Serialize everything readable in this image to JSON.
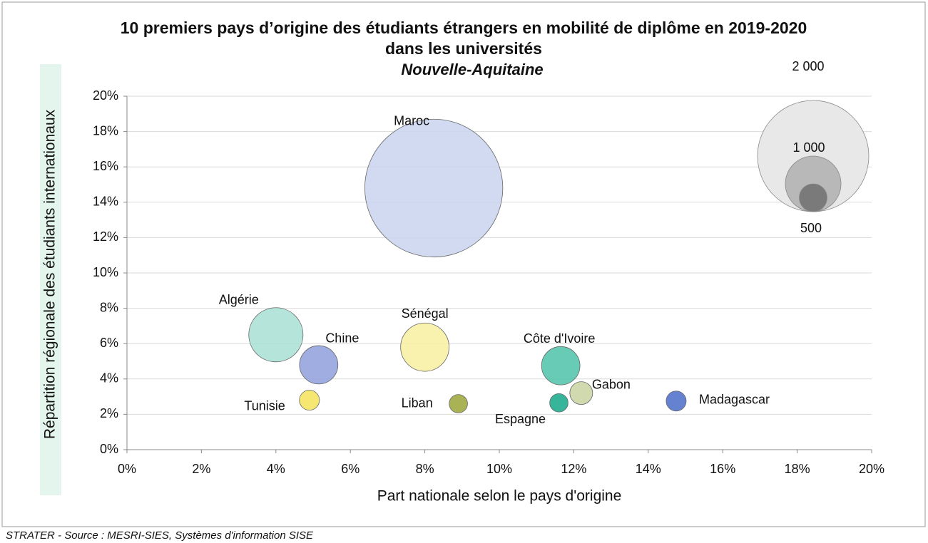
{
  "chart_data": {
    "type": "bubble",
    "title": "10 premiers pays d’origine des étudiants étrangers en mobilité de diplôme en 2019-2020",
    "title_line2": "dans les universités",
    "subtitle": "Nouvelle-Aquitaine",
    "x_label": "Part nationale selon le pays d'origine",
    "y_label": "Répartition régionale des étudiants internationaux",
    "source": "STRATER - Source : MESRI-SIES, Systèmes d'information SISE",
    "labels": [
      "Maroc",
      "Algérie",
      "Chine",
      "Tunisie",
      "Sénégal",
      "Liban",
      "Côte d'Ivoire",
      "Espagne",
      "Gabon",
      "Madagascar"
    ],
    "x": [
      8.24,
      4.0,
      5.15,
      4.9,
      8.0,
      8.9,
      11.65,
      11.6,
      12.2,
      14.75
    ],
    "values": [
      14.8,
      6.5,
      4.8,
      2.8,
      5.8,
      2.6,
      4.75,
      2.65,
      3.2,
      2.75
    ],
    "sizes": [
      2480,
      975,
      690,
      360,
      870,
      330,
      690,
      330,
      410,
      360
    ],
    "colors": [
      "#c9d3ef",
      "#a8e0d4",
      "#8e9fdc",
      "#f5e35a",
      "#f8efa0",
      "#9aa638",
      "#4dc2a8",
      "#14a88a",
      "#c8d3a0",
      "#4a6cc8"
    ],
    "size_legend": [
      {
        "value": 2000,
        "label": "2 000"
      },
      {
        "value": 1000,
        "label": "1 000"
      },
      {
        "value": 500,
        "label": "500"
      }
    ],
    "xlim": [
      0,
      20
    ],
    "ylim": [
      0,
      20
    ],
    "xticks": [
      {
        "value": 0,
        "label": "0%"
      },
      {
        "value": 2,
        "label": "2%"
      },
      {
        "value": 4,
        "label": "4%"
      },
      {
        "value": 6,
        "label": "6%"
      },
      {
        "value": 8,
        "label": "8%"
      },
      {
        "value": 10,
        "label": "10%"
      },
      {
        "value": 12,
        "label": "12%"
      },
      {
        "value": 14,
        "label": "14%"
      },
      {
        "value": 16,
        "label": "16%"
      },
      {
        "value": 18,
        "label": "18%"
      },
      {
        "value": 20,
        "label": "20%"
      }
    ],
    "yticks": [
      {
        "value": 0,
        "label": "0%"
      },
      {
        "value": 2,
        "label": "2%"
      },
      {
        "value": 4,
        "label": "4%"
      },
      {
        "value": 6,
        "label": "6%"
      },
      {
        "value": 8,
        "label": "8%"
      },
      {
        "value": 10,
        "label": "10%"
      },
      {
        "value": 12,
        "label": "12%"
      },
      {
        "value": 14,
        "label": "14%"
      },
      {
        "value": 16,
        "label": "16%"
      },
      {
        "value": 18,
        "label": "18%"
      },
      {
        "value": 20,
        "label": "20%"
      }
    ],
    "grid": true
  }
}
